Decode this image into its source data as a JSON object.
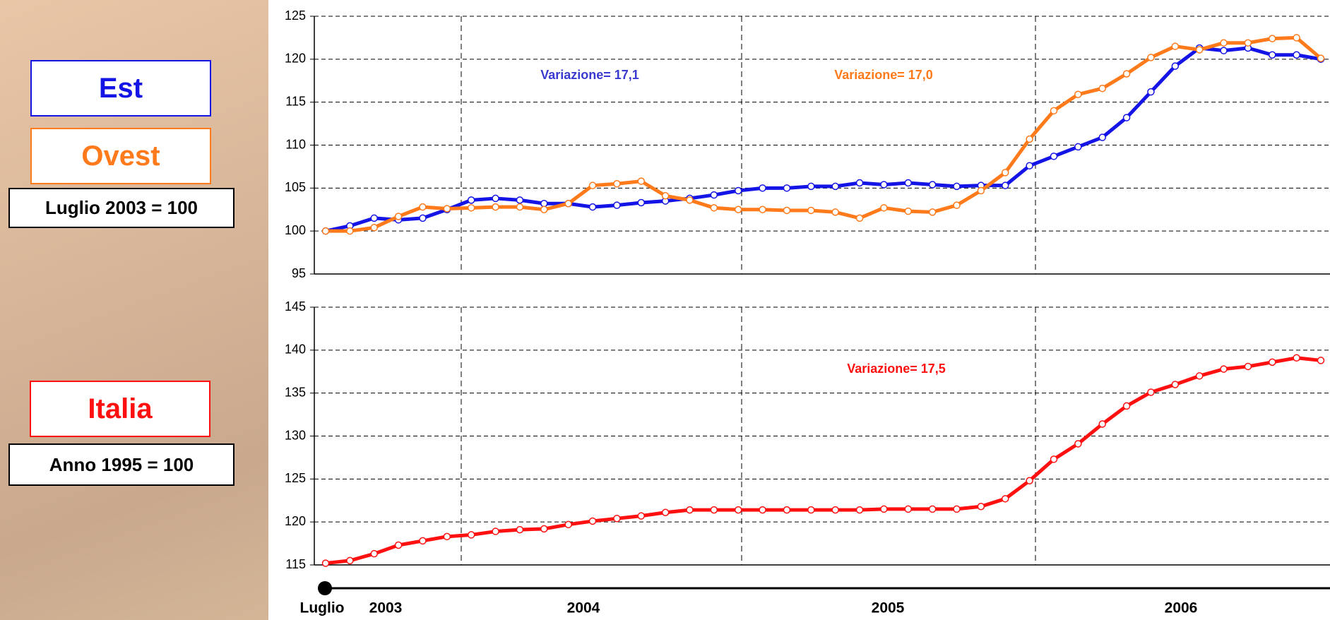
{
  "chart_data": [
    {
      "type": "line",
      "subtitle": "Luglio 2003 = 100",
      "ylim": [
        95,
        125
      ],
      "yticks": [
        95,
        100,
        105,
        110,
        115,
        120,
        125
      ],
      "grid": true,
      "series": [
        {
          "name": "Est",
          "color": "#1414e6",
          "values": [
            100.0,
            100.6,
            101.5,
            101.3,
            101.5,
            102.5,
            103.6,
            103.8,
            103.6,
            103.2,
            103.2,
            102.8,
            103.0,
            103.3,
            103.5,
            103.8,
            104.2,
            104.7,
            105.0,
            105.0,
            105.2,
            105.2,
            105.6,
            105.4,
            105.6,
            105.4,
            105.2,
            105.3,
            105.3,
            107.6,
            108.7,
            109.8,
            110.9,
            113.2,
            116.2,
            119.2,
            121.3,
            121.0,
            121.3,
            120.5,
            120.5,
            120.0
          ]
        },
        {
          "name": "Ovest",
          "color": "#ff7a1a",
          "values": [
            100.0,
            100.0,
            100.4,
            101.7,
            102.8,
            102.6,
            102.7,
            102.8,
            102.8,
            102.5,
            103.2,
            105.3,
            105.5,
            105.8,
            104.1,
            103.6,
            102.7,
            102.5,
            102.5,
            102.4,
            102.4,
            102.2,
            101.5,
            102.7,
            102.3,
            102.2,
            103.0,
            104.7,
            106.8,
            110.7,
            114.0,
            115.9,
            116.6,
            118.3,
            120.2,
            121.5,
            121.1,
            121.9,
            121.9,
            122.4,
            122.5,
            120.1
          ]
        }
      ],
      "annotations": [
        {
          "text": "Variazione= 17,1",
          "color": "#3a3ad0"
        },
        {
          "text": "Variazione= 17,0",
          "color": "#ff7a1a"
        }
      ]
    },
    {
      "type": "line",
      "subtitle": "Anno 1995 = 100",
      "ylim": [
        115,
        145
      ],
      "yticks": [
        115,
        120,
        125,
        130,
        135,
        140,
        145
      ],
      "grid": true,
      "series": [
        {
          "name": "Italia",
          "color": "#ff1010",
          "values": [
            115.2,
            115.5,
            116.3,
            117.3,
            117.8,
            118.3,
            118.5,
            118.9,
            119.1,
            119.2,
            119.7,
            120.1,
            120.4,
            120.7,
            121.1,
            121.4,
            121.4,
            121.4,
            121.4,
            121.4,
            121.4,
            121.4,
            121.4,
            121.5,
            121.5,
            121.5,
            121.5,
            121.8,
            122.7,
            124.8,
            127.3,
            129.1,
            131.4,
            133.5,
            135.1,
            136.0,
            137.0,
            137.8,
            138.1,
            138.6,
            139.1,
            138.8
          ]
        }
      ],
      "annotations": [
        {
          "text": "Variazione= 17,5",
          "color": "#ff1010"
        }
      ]
    }
  ],
  "time_axis": {
    "start_label": "Luglio",
    "labels": [
      "2003",
      "2004",
      "2005",
      "2006"
    ]
  }
}
